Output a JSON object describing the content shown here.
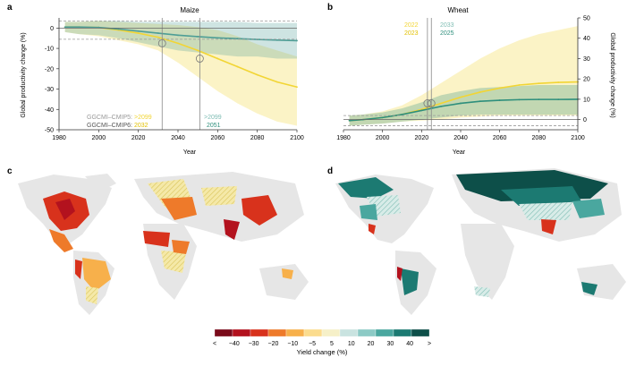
{
  "panels": {
    "a": {
      "letter": "a",
      "title": "Maize"
    },
    "b": {
      "letter": "b",
      "title": "Wheat"
    },
    "c": {
      "letter": "c"
    },
    "d": {
      "letter": "d"
    }
  },
  "chart_data": [
    {
      "id": "maize",
      "type": "line",
      "title": "Maize",
      "xlabel": "Year",
      "ylabel": "Global productivity change (%)",
      "xlim": [
        1980,
        2100
      ],
      "ylim": [
        -50,
        5
      ],
      "xticks": [
        "1980",
        "2000",
        "2020",
        "2040",
        "2060",
        "2080",
        "2100"
      ],
      "yticks": [
        "0",
        "-10",
        "-20",
        "-30",
        "-40",
        "-50"
      ],
      "x": [
        1983,
        1990,
        2000,
        2010,
        2020,
        2030,
        2040,
        2050,
        2060,
        2070,
        2080,
        2090,
        2100
      ],
      "series": [
        {
          "name": "GGCMI–CMIP5",
          "color": "#4e9e96",
          "values": [
            0.5,
            0.5,
            0.3,
            -0.5,
            -1.5,
            -2.5,
            -3.5,
            -4.2,
            -4.8,
            -5.2,
            -5.6,
            -5.9,
            -6.2
          ],
          "lower": [
            -2,
            -3,
            -3.5,
            -5,
            -7,
            -9,
            -11,
            -12,
            -13,
            -14,
            -14,
            -15,
            -15
          ],
          "upper": [
            3,
            3,
            3.5,
            3.5,
            3,
            3,
            3,
            3,
            3,
            3,
            2.5,
            2.5,
            2.5
          ]
        },
        {
          "name": "GGCMI–CMIP6",
          "color": "#f2d534",
          "values": [
            0.5,
            0.5,
            0.3,
            -1,
            -2.5,
            -4.5,
            -7.5,
            -11,
            -15,
            -19,
            -23,
            -26.5,
            -29
          ],
          "lower": [
            -2,
            -3,
            -4,
            -6,
            -8,
            -11,
            -17,
            -24,
            -31,
            -37,
            -42,
            -46,
            -48
          ],
          "upper": [
            3,
            3,
            3.5,
            3,
            2.5,
            2,
            1.5,
            0.5,
            -1,
            -4,
            -8,
            -11,
            -14
          ]
        }
      ],
      "dashed_hlines": [
        3.5,
        -5.5
      ],
      "legend": {
        "labels": [
          "GGCMI–CMIP5:",
          "GGCMI–CMIP6:"
        ],
        "cmip5_values": [
          ">2099",
          ">2099"
        ],
        "cmip6_values": [
          "2032",
          "2051"
        ]
      },
      "emergence_lines": [
        2032,
        2051
      ]
    },
    {
      "id": "wheat",
      "type": "line",
      "title": "Wheat",
      "xlabel": "Year",
      "ylabel": "Global productivity change (%)",
      "xlim": [
        1980,
        2100
      ],
      "ylim": [
        -5,
        50
      ],
      "xticks": [
        "1980",
        "2000",
        "2020",
        "2040",
        "2060",
        "2080",
        "2100"
      ],
      "yticks": [
        "0",
        "10",
        "20",
        "30",
        "40",
        "50"
      ],
      "x": [
        1983,
        1990,
        2000,
        2010,
        2020,
        2030,
        2040,
        2050,
        2060,
        2070,
        2080,
        2090,
        2100
      ],
      "series": [
        {
          "name": "GGCMI–CMIP5",
          "color": "#2e8f7c",
          "values": [
            -0.5,
            0,
            1,
            2.5,
            4.5,
            6.5,
            8,
            9,
            9.5,
            9.8,
            9.9,
            9.9,
            10
          ],
          "lower": [
            -3,
            -2.5,
            -2,
            -1,
            0,
            1,
            2,
            2.5,
            2.5,
            2.5,
            2.5,
            2.5,
            2.5
          ],
          "upper": [
            2,
            2.5,
            3.5,
            5.5,
            8.5,
            12,
            14,
            15.5,
            16,
            16.5,
            17,
            17,
            17
          ]
        },
        {
          "name": "GGCMI–CMIP6",
          "color": "#f2d534",
          "values": [
            -0.5,
            0,
            1,
            2.5,
            5,
            8,
            11,
            13.5,
            15.5,
            17,
            17.8,
            18.3,
            18.5
          ],
          "lower": [
            -3,
            -2.5,
            -2,
            -1,
            -0.5,
            0,
            1,
            1.5,
            2,
            2,
            2,
            2,
            2
          ],
          "upper": [
            2,
            2.5,
            4,
            7,
            12,
            18,
            24,
            30,
            35,
            39,
            42,
            44,
            46
          ]
        }
      ],
      "dashed_hlines": [
        2,
        -3
      ],
      "legend": {
        "cmip6_values": [
          "2022",
          "2023"
        ],
        "cmip5_values": [
          "2033",
          "2025"
        ]
      },
      "emergence_lines": [
        2023,
        2025
      ]
    }
  ],
  "colorbar": {
    "label": "Yield change (%)",
    "ticks": [
      "<",
      "−40",
      "−30",
      "−20",
      "−10",
      "−5",
      "5",
      "10",
      "20",
      "30",
      "40",
      ">"
    ],
    "colors": [
      "#7a0a1a",
      "#b3121e",
      "#d8321c",
      "#ee7a2a",
      "#f7b04b",
      "#fbdc8e",
      "#f6f0c8",
      "#c9e3e0",
      "#8ccac5",
      "#4aa79f",
      "#1c7a72",
      "#0d4f49"
    ]
  },
  "map_colors": {
    "land": "#e6e6e6",
    "hatch_yellow": "#e9d46b",
    "hatch_teal": "#7fbdb4"
  }
}
